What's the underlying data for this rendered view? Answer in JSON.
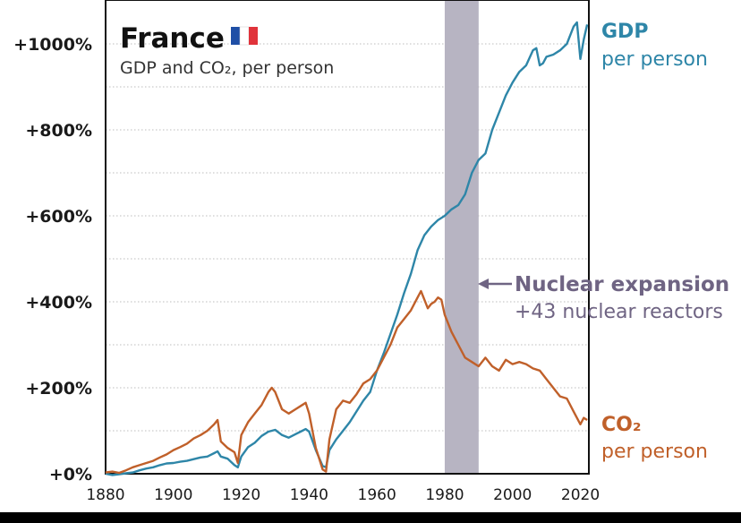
{
  "chart_data": {
    "type": "line",
    "title": "France",
    "subtitle": "GDP and CO₂, per person",
    "flag_icon": "france-flag-icon",
    "xlim": [
      1880,
      2023
    ],
    "ylim": [
      0,
      1070
    ],
    "xticks": [
      1880,
      1900,
      1920,
      1940,
      1960,
      1980,
      2000,
      2020
    ],
    "xtick_labels": [
      "1880",
      "1900",
      "1920",
      "1940",
      "1960",
      "1980",
      "2000",
      "2020"
    ],
    "yticks": [
      0,
      200,
      400,
      600,
      800,
      1000
    ],
    "ytick_labels": [
      "+0%",
      "+200%",
      "+400%",
      "+600%",
      "+800%",
      "+1000%"
    ],
    "gridlines": [
      100,
      200,
      300,
      400,
      500,
      600,
      700,
      800,
      900,
      1000
    ],
    "highlight": {
      "x_range": [
        1980,
        1990
      ],
      "label": "Nuclear expansion",
      "sublabel": "+43 nuclear reactors",
      "color": "#b7b4c2"
    },
    "series": [
      {
        "name": "GDP",
        "label": "GDP",
        "sublabel": "per person",
        "color": "#2e86a8",
        "x": [
          1880,
          1882,
          1884,
          1886,
          1888,
          1890,
          1892,
          1894,
          1896,
          1898,
          1900,
          1902,
          1904,
          1906,
          1908,
          1910,
          1912,
          1913,
          1914,
          1916,
          1918,
          1919,
          1920,
          1922,
          1924,
          1926,
          1928,
          1929,
          1930,
          1932,
          1934,
          1936,
          1938,
          1939,
          1940,
          1942,
          1944,
          1945,
          1946,
          1948,
          1950,
          1952,
          1954,
          1956,
          1958,
          1960,
          1962,
          1964,
          1966,
          1968,
          1970,
          1972,
          1974,
          1976,
          1978,
          1980,
          1982,
          1984,
          1986,
          1988,
          1990,
          1992,
          1994,
          1996,
          1998,
          2000,
          2002,
          2004,
          2006,
          2007,
          2008,
          2009,
          2010,
          2012,
          2014,
          2016,
          2018,
          2019,
          2020,
          2021,
          2022
        ],
        "values": [
          0,
          -3,
          -1,
          1,
          3,
          8,
          12,
          15,
          20,
          24,
          25,
          28,
          30,
          34,
          38,
          40,
          48,
          52,
          40,
          35,
          20,
          15,
          40,
          62,
          72,
          88,
          98,
          100,
          102,
          90,
          84,
          92,
          100,
          104,
          98,
          55,
          18,
          15,
          55,
          80,
          100,
          120,
          145,
          170,
          190,
          240,
          280,
          325,
          370,
          420,
          465,
          520,
          555,
          575,
          590,
          600,
          615,
          625,
          650,
          700,
          730,
          745,
          800,
          840,
          880,
          910,
          935,
          950,
          985,
          990,
          950,
          955,
          970,
          975,
          985,
          1000,
          1040,
          1050,
          965,
          1010,
          1045
        ]
      },
      {
        "name": "CO₂",
        "label": "CO₂",
        "sublabel": "per person",
        "color": "#c0602a",
        "x": [
          1880,
          1882,
          1884,
          1886,
          1888,
          1890,
          1892,
          1894,
          1896,
          1898,
          1900,
          1902,
          1904,
          1906,
          1908,
          1910,
          1912,
          1913,
          1914,
          1916,
          1918,
          1919,
          1920,
          1922,
          1924,
          1926,
          1928,
          1929,
          1930,
          1932,
          1934,
          1936,
          1938,
          1939,
          1940,
          1942,
          1944,
          1945,
          1946,
          1948,
          1950,
          1952,
          1954,
          1956,
          1958,
          1960,
          1962,
          1964,
          1966,
          1968,
          1970,
          1972,
          1973,
          1974,
          1975,
          1976,
          1977,
          1978,
          1979,
          1980,
          1982,
          1984,
          1986,
          1988,
          1990,
          1992,
          1994,
          1996,
          1998,
          2000,
          2002,
          2004,
          2006,
          2008,
          2010,
          2012,
          2014,
          2016,
          2018,
          2020,
          2021,
          2022
        ],
        "values": [
          3,
          5,
          2,
          8,
          15,
          20,
          25,
          30,
          38,
          45,
          55,
          62,
          70,
          82,
          90,
          100,
          115,
          125,
          75,
          60,
          50,
          25,
          90,
          120,
          140,
          160,
          190,
          200,
          190,
          150,
          140,
          150,
          160,
          165,
          140,
          60,
          10,
          5,
          80,
          150,
          170,
          165,
          185,
          210,
          220,
          240,
          270,
          300,
          340,
          360,
          380,
          410,
          425,
          405,
          385,
          395,
          400,
          410,
          405,
          370,
          330,
          300,
          270,
          260,
          250,
          270,
          250,
          240,
          265,
          255,
          260,
          255,
          245,
          240,
          220,
          200,
          180,
          175,
          145,
          115,
          130,
          125
        ]
      }
    ]
  }
}
